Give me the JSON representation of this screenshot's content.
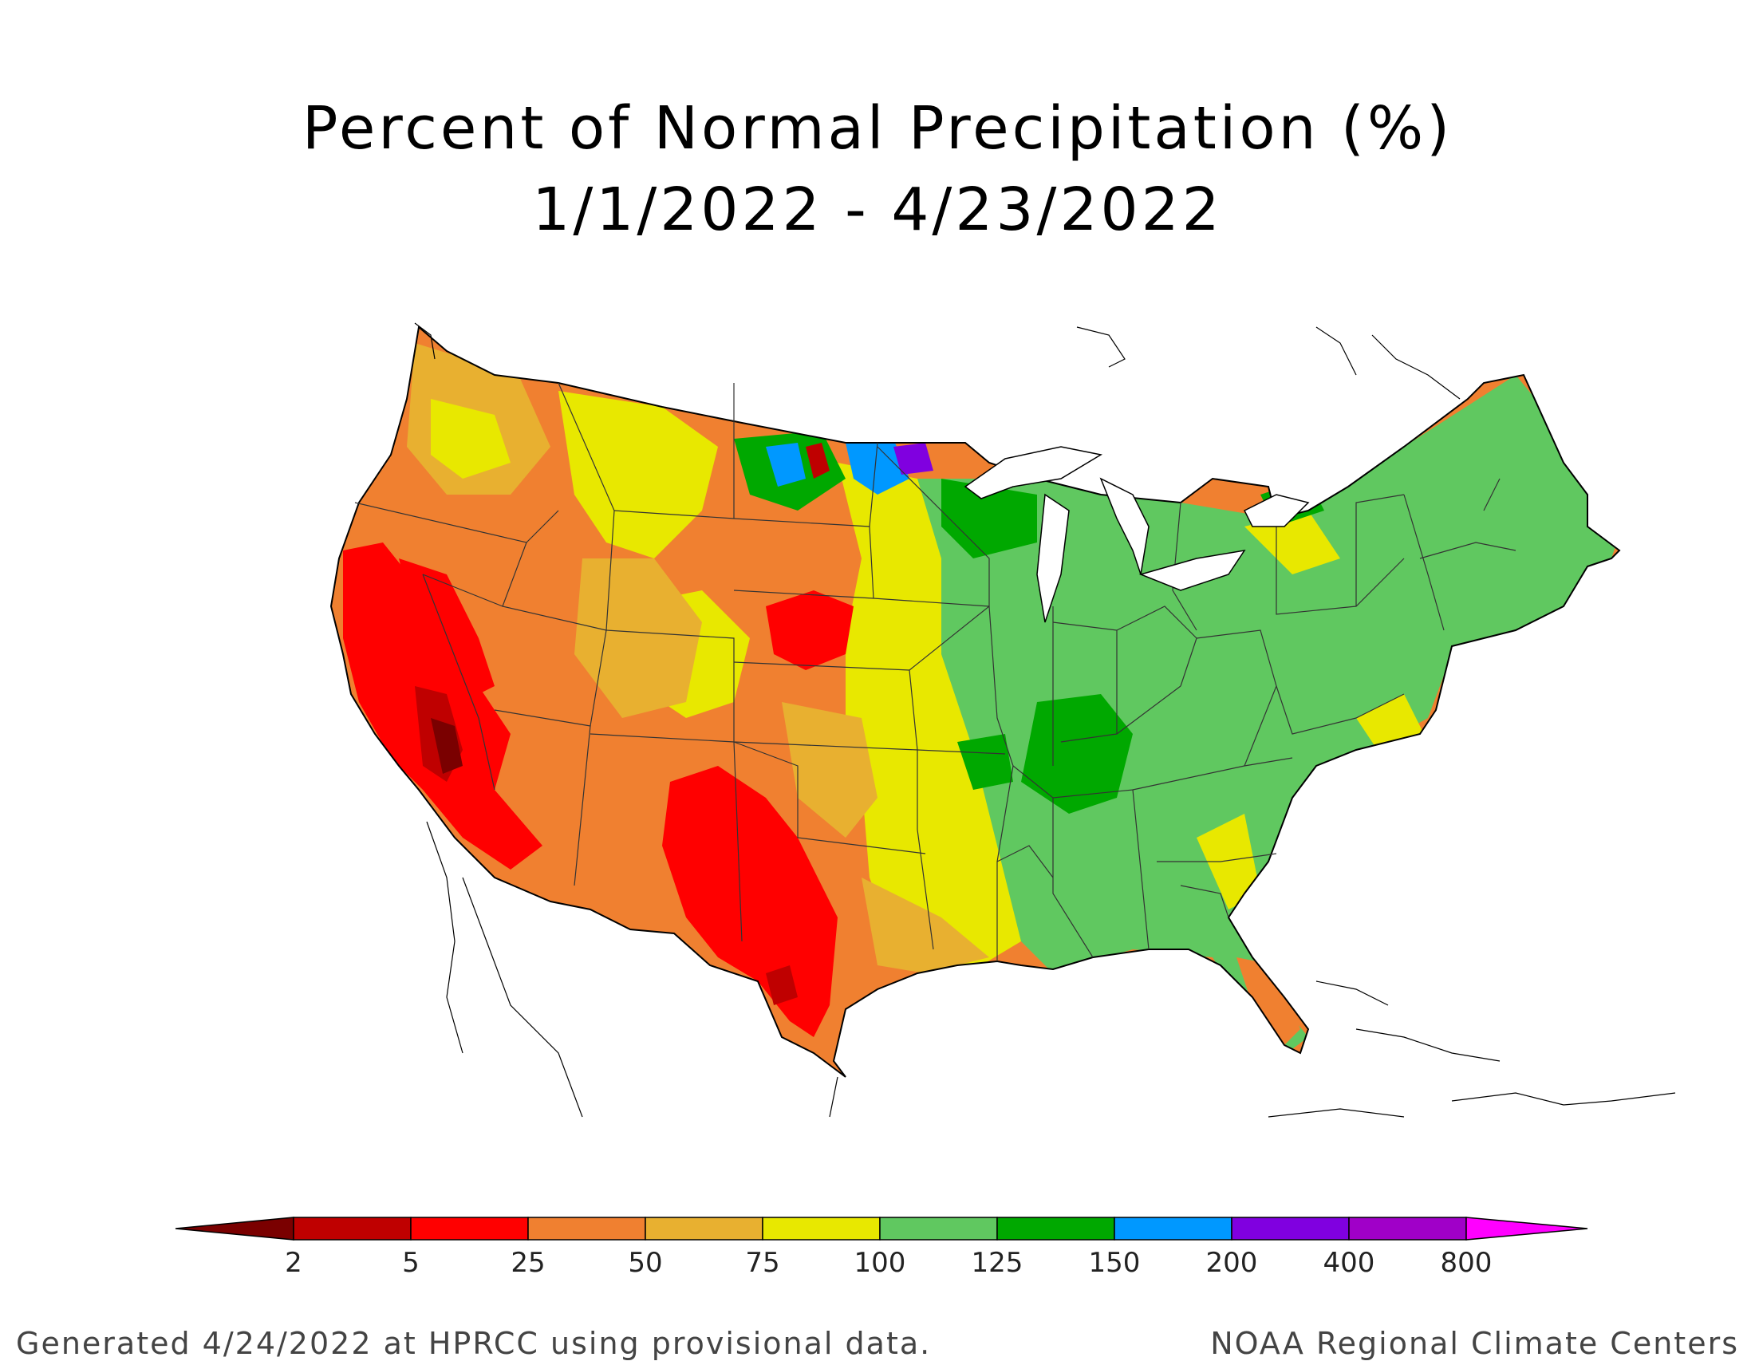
{
  "title": {
    "line1": "Percent of Normal Precipitation (%)",
    "line2": "1/1/2022 - 4/23/2022"
  },
  "colorbar": {
    "labels": [
      "2",
      "5",
      "25",
      "50",
      "75",
      "100",
      "125",
      "150",
      "200",
      "400",
      "800"
    ],
    "colors": [
      "#7a0000",
      "#bf0000",
      "#ff0000",
      "#f08030",
      "#e8b030",
      "#e8e800",
      "#60c860",
      "#00a800",
      "#0098ff",
      "#8000e0",
      "#a000c8",
      "#ff00ff"
    ]
  },
  "footer": {
    "left": "Generated 4/24/2022 at HPRCC using provisional data.",
    "right": "NOAA Regional Climate Centers"
  },
  "legend_regions": {
    "colors": {
      "very_dry": "#7a0000",
      "dry": "#ff0000",
      "low": "#f08030",
      "below_normal": "#e8b030",
      "near_normal": "#e8e800",
      "above_normal": "#60c860",
      "wet": "#00a800",
      "very_wet": "#0098ff",
      "extreme_wet": "#8000e0"
    }
  }
}
